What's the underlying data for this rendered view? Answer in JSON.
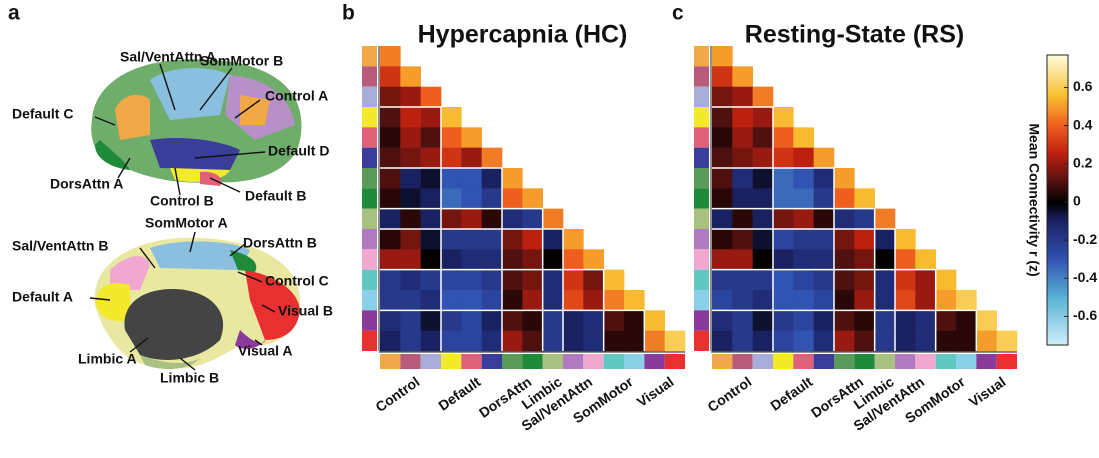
{
  "panel_labels": [
    "a",
    "b",
    "c"
  ],
  "brain": {
    "labels": [
      "Sal/VentAttn A",
      "SomMotor B",
      "Control A",
      "Default C",
      "Default D",
      "DorsAttn A",
      "Control B",
      "Default B",
      "SomMotor A",
      "Sal/VentAttn B",
      "DorsAttn B",
      "Control C",
      "Default A",
      "Visual B",
      "Visual A",
      "Limbic A",
      "Limbic B"
    ]
  },
  "colorbar": {
    "label": "Mean Connectivity r (z)",
    "lim": [
      -0.75,
      0.77
    ],
    "ticks": [
      0.6,
      0.4,
      0.2,
      0,
      -0.2,
      -0.4,
      -0.6
    ]
  },
  "chart_data": [
    {
      "type": "heatmap",
      "title": "Hypercapnia (HC)",
      "groups": [
        {
          "label": "Control",
          "colors": [
            "#f0a848",
            "#b85a7a",
            "#a8acd8"
          ]
        },
        {
          "label": "Default",
          "colors": [
            "#f2ea2a",
            "#e0607a",
            "#3a3e9a"
          ]
        },
        {
          "label": "DorsAttn",
          "colors": [
            "#5a9a5a",
            "#1f8a3a"
          ]
        },
        {
          "label": "Limbic",
          "colors": [
            "#a8c080"
          ]
        },
        {
          "label": "Sal/VentAttn",
          "colors": [
            "#b07ac0",
            "#f0a8d0"
          ]
        },
        {
          "label": "SomMotor",
          "colors": [
            "#60c8c0",
            "#8ad0e8"
          ]
        },
        {
          "label": "Visual",
          "colors": [
            "#8a3a9a",
            "#e83030"
          ]
        }
      ],
      "values": [
        [
          0.45
        ],
        [
          0.3,
          0.5
        ],
        [
          0.15,
          0.2,
          0.4
        ],
        [
          0.1,
          0.25,
          0.2,
          0.55
        ],
        [
          0.05,
          0.2,
          0.1,
          0.4,
          0.5
        ],
        [
          0.1,
          0.15,
          0.2,
          0.3,
          0.2,
          0.45
        ],
        [
          0.1,
          -0.1,
          -0.05,
          -0.3,
          -0.3,
          -0.1,
          0.5
        ],
        [
          0.05,
          -0.05,
          -0.1,
          -0.35,
          -0.3,
          -0.2,
          0.4,
          0.5
        ],
        [
          -0.1,
          0.05,
          -0.1,
          0.15,
          0.2,
          0.05,
          -0.15,
          -0.2,
          0.45
        ],
        [
          0.05,
          0.15,
          -0.05,
          -0.2,
          -0.2,
          -0.2,
          0.15,
          0.25,
          -0.1,
          0.5
        ],
        [
          0.2,
          0.2,
          0,
          -0.1,
          -0.15,
          -0.15,
          0.1,
          0.15,
          0,
          0.4,
          0.5
        ],
        [
          -0.2,
          -0.15,
          -0.2,
          -0.25,
          -0.25,
          -0.2,
          0.1,
          0.15,
          -0.15,
          0.3,
          0.15,
          0.55
        ],
        [
          -0.2,
          -0.2,
          -0.15,
          -0.3,
          -0.3,
          -0.25,
          0.05,
          0.2,
          -0.15,
          0.35,
          0.2,
          0.45,
          0.55
        ],
        [
          -0.15,
          -0.2,
          -0.05,
          -0.2,
          -0.25,
          -0.1,
          0.1,
          0.05,
          -0.2,
          -0.1,
          -0.15,
          0.1,
          0.05,
          0.55
        ],
        [
          -0.1,
          -0.2,
          -0.1,
          -0.25,
          -0.25,
          -0.15,
          0.2,
          0.1,
          -0.2,
          -0.1,
          -0.15,
          0.05,
          0.05,
          0.45,
          0.6
        ]
      ]
    },
    {
      "type": "heatmap",
      "title": "Resting-State (RS)",
      "groups": [
        {
          "label": "Control",
          "colors": [
            "#f0a848",
            "#b85a7a",
            "#a8acd8"
          ]
        },
        {
          "label": "Default",
          "colors": [
            "#f2ea2a",
            "#e0607a",
            "#3a3e9a"
          ]
        },
        {
          "label": "DorsAttn",
          "colors": [
            "#5a9a5a",
            "#1f8a3a"
          ]
        },
        {
          "label": "Limbic",
          "colors": [
            "#a8c080"
          ]
        },
        {
          "label": "Sal/VentAttn",
          "colors": [
            "#b07ac0",
            "#f0a8d0"
          ]
        },
        {
          "label": "SomMotor",
          "colors": [
            "#60c8c0",
            "#8ad0e8"
          ]
        },
        {
          "label": "Visual",
          "colors": [
            "#8a3a9a",
            "#e83030"
          ]
        }
      ],
      "values": [
        [
          0.5
        ],
        [
          0.3,
          0.5
        ],
        [
          0.15,
          0.2,
          0.45
        ],
        [
          0.1,
          0.25,
          0.2,
          0.55
        ],
        [
          0.05,
          0.2,
          0.1,
          0.4,
          0.55
        ],
        [
          0.1,
          0.15,
          0.2,
          0.3,
          0.25,
          0.5
        ],
        [
          0.1,
          -0.15,
          -0.05,
          -0.35,
          -0.3,
          -0.15,
          0.5
        ],
        [
          0.05,
          -0.1,
          -0.1,
          -0.35,
          -0.35,
          -0.2,
          0.4,
          0.55
        ],
        [
          -0.1,
          0.05,
          -0.1,
          0.15,
          0.2,
          0.05,
          -0.15,
          -0.2,
          0.45
        ],
        [
          0.05,
          0.1,
          -0.05,
          -0.25,
          -0.2,
          -0.2,
          0.15,
          0.25,
          -0.1,
          0.55
        ],
        [
          0.2,
          0.2,
          0,
          -0.1,
          -0.15,
          -0.15,
          0.1,
          0.15,
          0,
          0.4,
          0.55
        ],
        [
          -0.2,
          -0.2,
          -0.2,
          -0.3,
          -0.25,
          -0.2,
          0.1,
          0.15,
          -0.15,
          0.3,
          0.2,
          0.55
        ],
        [
          -0.25,
          -0.2,
          -0.15,
          -0.3,
          -0.3,
          -0.25,
          0.05,
          0.2,
          -0.15,
          0.35,
          0.2,
          0.5,
          0.6
        ],
        [
          -0.15,
          -0.2,
          -0.05,
          -0.2,
          -0.25,
          -0.1,
          0.1,
          0.05,
          -0.2,
          -0.1,
          -0.15,
          0.1,
          0.05,
          0.6
        ],
        [
          -0.1,
          -0.2,
          -0.1,
          -0.25,
          -0.3,
          -0.15,
          0.2,
          0.1,
          -0.2,
          -0.1,
          -0.15,
          0.05,
          0.05,
          0.5,
          0.6
        ]
      ]
    }
  ]
}
